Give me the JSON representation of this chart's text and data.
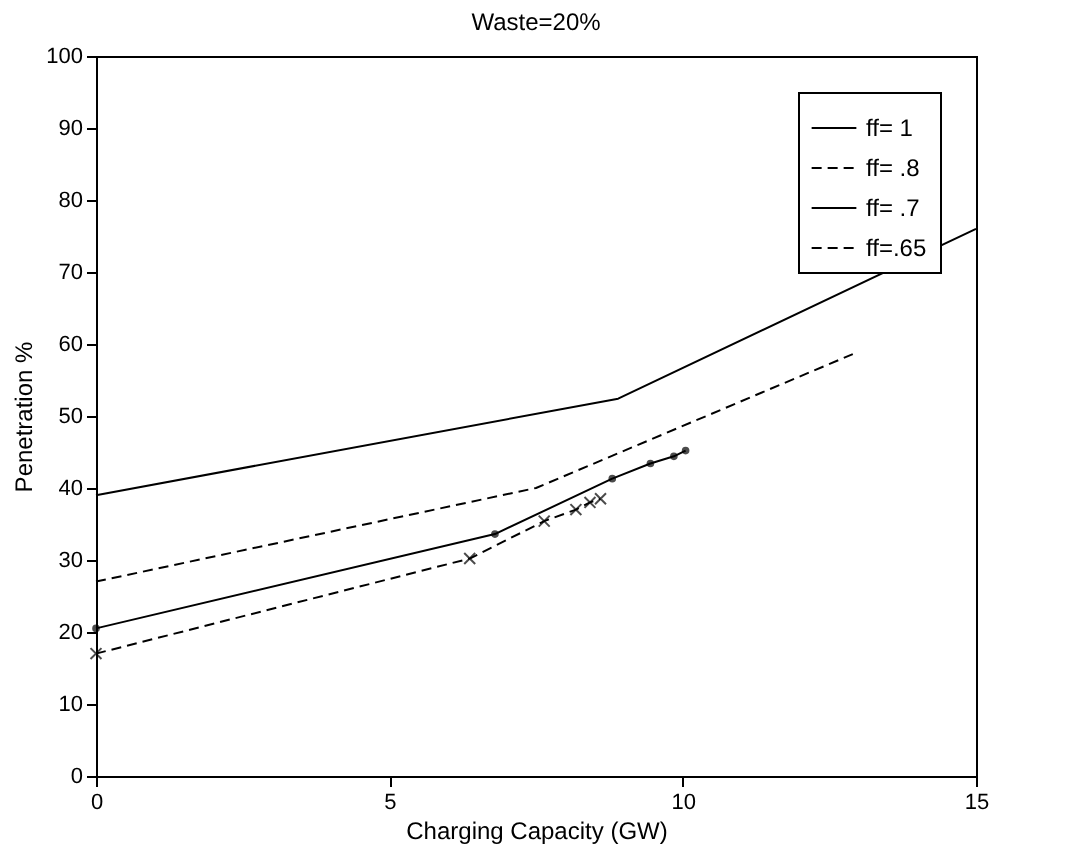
{
  "chart_data": {
    "type": "line",
    "title": "Waste=20%",
    "xlabel": "Charging Capacity (GW)",
    "ylabel": "Penetration %",
    "xlim": [
      0,
      15
    ],
    "xticks": [
      0,
      5,
      10,
      15
    ],
    "ylim": [
      0,
      100
    ],
    "yticks": [
      0,
      10,
      20,
      30,
      40,
      50,
      60,
      70,
      80,
      90,
      100
    ],
    "grid": false,
    "legend": "top right",
    "series": [
      {
        "name": "ff=  1",
        "color": "#000000",
        "line_style": "solid",
        "marker": "none",
        "x": [
          0,
          8.9,
          15
        ],
        "values": [
          39,
          52.4,
          76
        ]
      },
      {
        "name": "ff= .8",
        "color": "#000000",
        "line_style": "dashed",
        "marker": "none",
        "x": [
          0,
          7.5,
          12.9
        ],
        "values": [
          27,
          40,
          58.6
        ]
      },
      {
        "name": "ff= .7",
        "color": "#000000",
        "line_style": "solid",
        "marker": "circle",
        "x": [
          0,
          6.8,
          8.8,
          9.45,
          9.85,
          10.05
        ],
        "values": [
          20.5,
          33.6,
          41.3,
          43.4,
          44.4,
          45.2
        ]
      },
      {
        "name": "ff=.65",
        "color": "#000000",
        "line_style": "dashed",
        "marker": "cross",
        "x": [
          0,
          6.37,
          7.64,
          8.18,
          8.42,
          8.6
        ],
        "values": [
          17,
          30.2,
          35.4,
          37,
          38,
          38.5
        ]
      }
    ]
  }
}
